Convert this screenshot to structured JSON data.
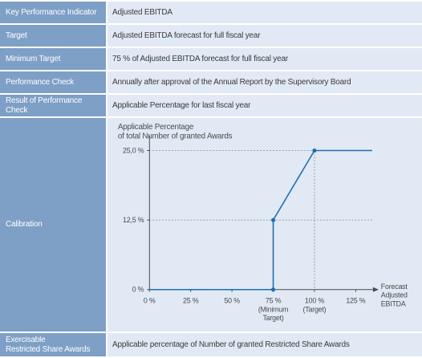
{
  "rows": [
    {
      "label": "Key Performance Indicator",
      "value": "Adjusted EBITDA"
    },
    {
      "label": "Target",
      "value": "Adjusted EBITDA forecast for full fiscal year"
    },
    {
      "label": "Minimum Target",
      "value": "75 % of Adjusted EBITDA forecast for full fiscal year"
    },
    {
      "label": "Performance Check",
      "value": "Annually after approval of the Annual Report by the Supervisory Board"
    },
    {
      "label": "Result of Performance Check",
      "value": "Applicable Percentage for last fiscal year"
    },
    {
      "label": "Calibration"
    },
    {
      "label_line1": "Exercisable",
      "label_line2": "Restricted Share Awards",
      "value": "Applicable percentage of Number of granted Restricted Share Awards"
    }
  ],
  "chart_data": {
    "type": "line",
    "ylabel_line1": "Applicable Percentage",
    "ylabel_line2": "of total Number of granted Awards",
    "xlabel_line1": "Forecast",
    "xlabel_line2": "Adjusted",
    "xlabel_line3": "EBITDA",
    "x_ticks": [
      "0 %",
      "25 %",
      "50 %",
      "75 %",
      "100 %",
      "125 %"
    ],
    "x_tick_values": [
      0,
      25,
      50,
      75,
      100,
      125
    ],
    "x_tick_notes": {
      "75": [
        "(Minimum",
        "Target)"
      ],
      "100": [
        "(Target)"
      ]
    },
    "y_ticks": [
      "0 %",
      "12,5 %",
      "25,0 %"
    ],
    "y_tick_values": [
      0,
      12.5,
      25
    ],
    "xlim": [
      0,
      135
    ],
    "ylim": [
      0,
      27
    ],
    "series": [
      {
        "x": [
          0,
          75,
          75,
          100,
          135
        ],
        "y": [
          0,
          0,
          12.5,
          25,
          25
        ]
      }
    ],
    "markers": [
      {
        "x": 75,
        "y": 0
      },
      {
        "x": 75,
        "y": 12.5
      },
      {
        "x": 100,
        "y": 25
      }
    ],
    "guides": [
      {
        "y": 12.5
      },
      {
        "y": 25
      },
      {
        "x": 100
      }
    ],
    "colors": {
      "line": "#1f6fb3",
      "axis": "#4a4a4a",
      "guide": "#8a8a8a",
      "text": "#4a4a4a"
    }
  }
}
